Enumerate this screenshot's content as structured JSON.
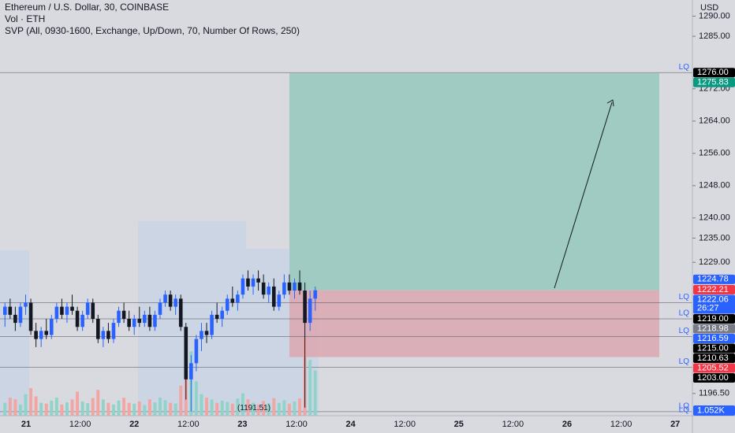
{
  "chart_data": {
    "type": "candlestick",
    "title": "Ethereum / U.S. Dollar, 30, COINBASE",
    "subtitle": "Vol · ETH",
    "indicator": "SVP (All, 0930-1600, Exchange, Up/Down, 70, Number Of Rows, 250)",
    "currency": "USD",
    "ylim": [
      1191,
      1294
    ],
    "yticks": [
      {
        "value": 1290,
        "label": "1290.00"
      },
      {
        "value": 1285,
        "label": "1285.00"
      },
      {
        "value": 1272,
        "label": "1272.00"
      },
      {
        "value": 1264,
        "label": "1264.00"
      },
      {
        "value": 1256,
        "label": "1256.00"
      },
      {
        "value": 1248,
        "label": "1248.00"
      },
      {
        "value": 1240,
        "label": "1240.00"
      },
      {
        "value": 1235,
        "label": "1235.00"
      },
      {
        "value": 1229,
        "label": "1229.00"
      },
      {
        "value": 1196.5,
        "label": "1196.50"
      }
    ],
    "xticks": [
      "21",
      "12:00",
      "22",
      "12:00",
      "23",
      "12:00",
      "24",
      "12:00",
      "25",
      "12:00",
      "26",
      "12:00",
      "27"
    ],
    "up_color": "#2962ff",
    "down_color": "#131722",
    "candles": [
      [
        1216,
        1219,
        1213,
        1218
      ],
      [
        1218,
        1220,
        1215,
        1216
      ],
      [
        1216,
        1218,
        1212,
        1214
      ],
      [
        1214,
        1219,
        1213,
        1218
      ],
      [
        1218,
        1221,
        1216,
        1219
      ],
      [
        1219,
        1220,
        1211,
        1212
      ],
      [
        1212,
        1214,
        1208,
        1210
      ],
      [
        1210,
        1213,
        1208,
        1212
      ],
      [
        1212,
        1215,
        1210,
        1211
      ],
      [
        1211,
        1216,
        1210,
        1215
      ],
      [
        1215,
        1219,
        1214,
        1218
      ],
      [
        1218,
        1220,
        1215,
        1216
      ],
      [
        1216,
        1219,
        1214,
        1218
      ],
      [
        1218,
        1221,
        1216,
        1217
      ],
      [
        1217,
        1218,
        1212,
        1213
      ],
      [
        1213,
        1217,
        1212,
        1216
      ],
      [
        1216,
        1220,
        1215,
        1219
      ],
      [
        1219,
        1220,
        1214,
        1215
      ],
      [
        1215,
        1216,
        1209,
        1210
      ],
      [
        1210,
        1213,
        1208,
        1212
      ],
      [
        1212,
        1214,
        1209,
        1210
      ],
      [
        1210,
        1215,
        1209,
        1214
      ],
      [
        1214,
        1218,
        1213,
        1217
      ],
      [
        1217,
        1219,
        1214,
        1215
      ],
      [
        1215,
        1217,
        1212,
        1213
      ],
      [
        1213,
        1216,
        1211,
        1215
      ],
      [
        1215,
        1218,
        1213,
        1214
      ],
      [
        1214,
        1217,
        1213,
        1216
      ],
      [
        1216,
        1218,
        1212,
        1213
      ],
      [
        1213,
        1217,
        1212,
        1216
      ],
      [
        1216,
        1220,
        1215,
        1219
      ],
      [
        1219,
        1222,
        1218,
        1221
      ],
      [
        1221,
        1222,
        1217,
        1218
      ],
      [
        1218,
        1221,
        1216,
        1220
      ],
      [
        1220,
        1221,
        1212,
        1213
      ],
      [
        1213,
        1214,
        1195,
        1200
      ],
      [
        1200,
        1206,
        1192,
        1204
      ],
      [
        1204,
        1211,
        1202,
        1210
      ],
      [
        1210,
        1214,
        1207,
        1212
      ],
      [
        1212,
        1214,
        1209,
        1211
      ],
      [
        1211,
        1217,
        1210,
        1216
      ],
      [
        1216,
        1219,
        1214,
        1215
      ],
      [
        1215,
        1218,
        1213,
        1217
      ],
      [
        1217,
        1221,
        1216,
        1220
      ],
      [
        1220,
        1223,
        1218,
        1219
      ],
      [
        1219,
        1222,
        1217,
        1221
      ],
      [
        1221,
        1226,
        1220,
        1225
      ],
      [
        1225,
        1227,
        1222,
        1223
      ],
      [
        1223,
        1226,
        1221,
        1225
      ],
      [
        1225,
        1227,
        1222,
        1224
      ],
      [
        1224,
        1226,
        1220,
        1221
      ],
      [
        1221,
        1224,
        1219,
        1223
      ],
      [
        1223,
        1225,
        1217,
        1218
      ],
      [
        1218,
        1222,
        1217,
        1221
      ],
      [
        1221,
        1226,
        1220,
        1224
      ],
      [
        1224,
        1226,
        1221,
        1222
      ],
      [
        1222,
        1225,
        1220,
        1224
      ],
      [
        1224,
        1227,
        1221,
        1222
      ],
      [
        1222,
        1224,
        1193,
        1214
      ],
      [
        1214,
        1222,
        1212,
        1220
      ],
      [
        1220,
        1223,
        1217,
        1222.06
      ]
    ],
    "volume": {
      "values": [
        300,
        420,
        380,
        260,
        500,
        640,
        450,
        300,
        280,
        350,
        420,
        260,
        310,
        380,
        560,
        330,
        290,
        410,
        600,
        380,
        300,
        260,
        350,
        420,
        300,
        280,
        330,
        250,
        380,
        310,
        420,
        360,
        300,
        280,
        700,
        1900,
        1500,
        800,
        500,
        420,
        380,
        300,
        350,
        320,
        280,
        400,
        520,
        380,
        300,
        260,
        340,
        290,
        410,
        300,
        360,
        280,
        330,
        400,
        1800,
        1300,
        1052
      ],
      "ylim": [
        0,
        2200
      ],
      "last_label": "1.052K",
      "up_color": "#90d4c9",
      "down_color": "#f2a5a3"
    },
    "position": {
      "target": 1275.83,
      "entry": 1222.06,
      "stop": 1205.52
    },
    "lq_levels": [
      1276,
      1219,
      1215,
      1210.63,
      1203,
      1192,
      1191
    ],
    "lq_labels": [
      "LQ",
      "LQ",
      "LQ",
      "LQ",
      "LQ",
      "LQ",
      "LQ"
    ],
    "low_annotation": {
      "value": 1191.51,
      "label": "(1191.51)"
    },
    "badges": [
      {
        "value": 1276,
        "label": "1276.00",
        "color": "#000000"
      },
      {
        "value": 1275.83,
        "label": "1275.83",
        "color": "#089981"
      },
      {
        "value": 1224.78,
        "label": "1224.78",
        "color": "#2962ff"
      },
      {
        "value": 1222.21,
        "label": "1222.21",
        "color": "#f23645"
      },
      {
        "value": 1222.06,
        "label": "1222.06",
        "color": "#2962ff"
      },
      {
        "value": 1219,
        "label": "1219.00",
        "color": "#000000"
      },
      {
        "value": 1218.98,
        "label": "1218.98",
        "color": "#787b86"
      },
      {
        "value": 1216.59,
        "label": "1216.59",
        "color": "#2962ff"
      },
      {
        "value": 1215,
        "label": "1215.00",
        "color": "#000000"
      },
      {
        "value": 1210.63,
        "label": "1210.63",
        "color": "#000000"
      },
      {
        "value": 1205.52,
        "label": "1205.52",
        "color": "#f23645"
      },
      {
        "value": 1203,
        "label": "1203.00",
        "color": "#000000"
      }
    ],
    "countdown": "26:27"
  }
}
